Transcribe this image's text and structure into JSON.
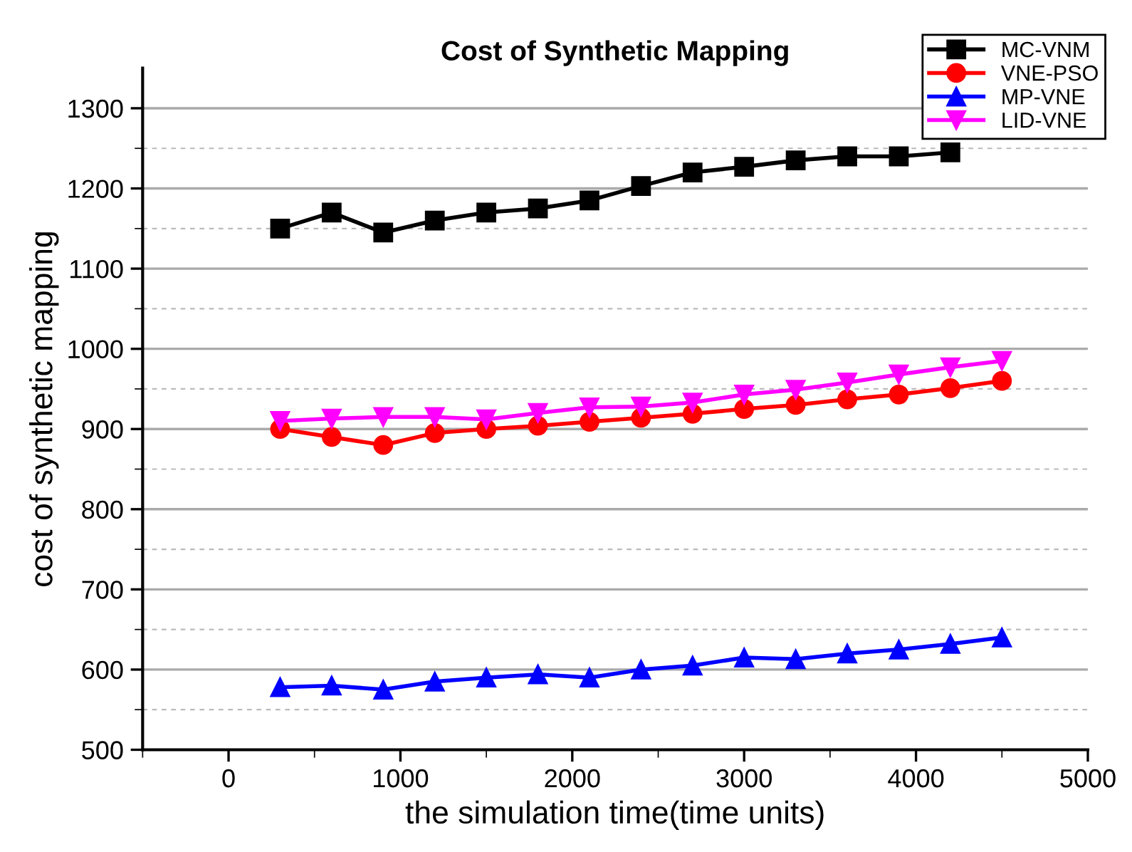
{
  "chart_data": {
    "type": "line",
    "title": "Cost of Synthetic Mapping",
    "xlabel": "the simulation time(time units)",
    "ylabel": "cost of synthetic mapping",
    "x": [
      300,
      600,
      900,
      1200,
      1500,
      1800,
      2100,
      2400,
      2700,
      3000,
      3300,
      3600,
      3900,
      4200,
      4500
    ],
    "series": [
      {
        "name": "MC-VNM",
        "color": "#000000",
        "marker": "square",
        "values": [
          1150,
          1170,
          1145,
          1160,
          1170,
          1175,
          1185,
          1203,
          1220,
          1227,
          1235,
          1240,
          1240,
          1245,
          null
        ]
      },
      {
        "name": "VNE-PSO",
        "color": "#ff0000",
        "marker": "circle",
        "values": [
          900,
          890,
          880,
          895,
          900,
          904,
          909,
          914,
          919,
          925,
          930,
          937,
          943,
          951,
          960
        ]
      },
      {
        "name": "MP-VNE",
        "color": "#0000ff",
        "marker": "triangle",
        "values": [
          578,
          580,
          575,
          585,
          590,
          594,
          590,
          600,
          605,
          615,
          613,
          620,
          625,
          632,
          640
        ]
      },
      {
        "name": "LID-VNE",
        "color": "#ff00ff",
        "marker": "triangle_down",
        "values": [
          910,
          913,
          915,
          915,
          912,
          920,
          927,
          928,
          933,
          943,
          949,
          958,
          968,
          977,
          985
        ]
      }
    ],
    "xlim": [
      -500,
      5000
    ],
    "ylim": [
      500,
      1350
    ],
    "xticks": [
      {
        "value": -500,
        "label": null
      },
      0,
      {
        "value": 500,
        "label": null
      },
      1000,
      {
        "value": 1500,
        "label": null
      },
      2000,
      {
        "value": 2500,
        "label": null
      },
      3000,
      {
        "value": 3500,
        "label": null
      },
      4000,
      {
        "value": 4500,
        "label": null
      },
      5000
    ],
    "yticks": [
      500,
      {
        "value": 550,
        "label": null
      },
      600,
      {
        "value": 650,
        "label": null
      },
      700,
      {
        "value": 750,
        "label": null
      },
      800,
      {
        "value": 850,
        "label": null
      },
      900,
      {
        "value": 950,
        "label": null
      },
      1000,
      {
        "value": 1050,
        "label": null
      },
      1100,
      {
        "value": 1150,
        "label": null
      },
      1200,
      {
        "value": 1250,
        "label": null
      },
      1300
    ],
    "grid": "y",
    "legend": "top right",
    "line_style": "solid"
  }
}
